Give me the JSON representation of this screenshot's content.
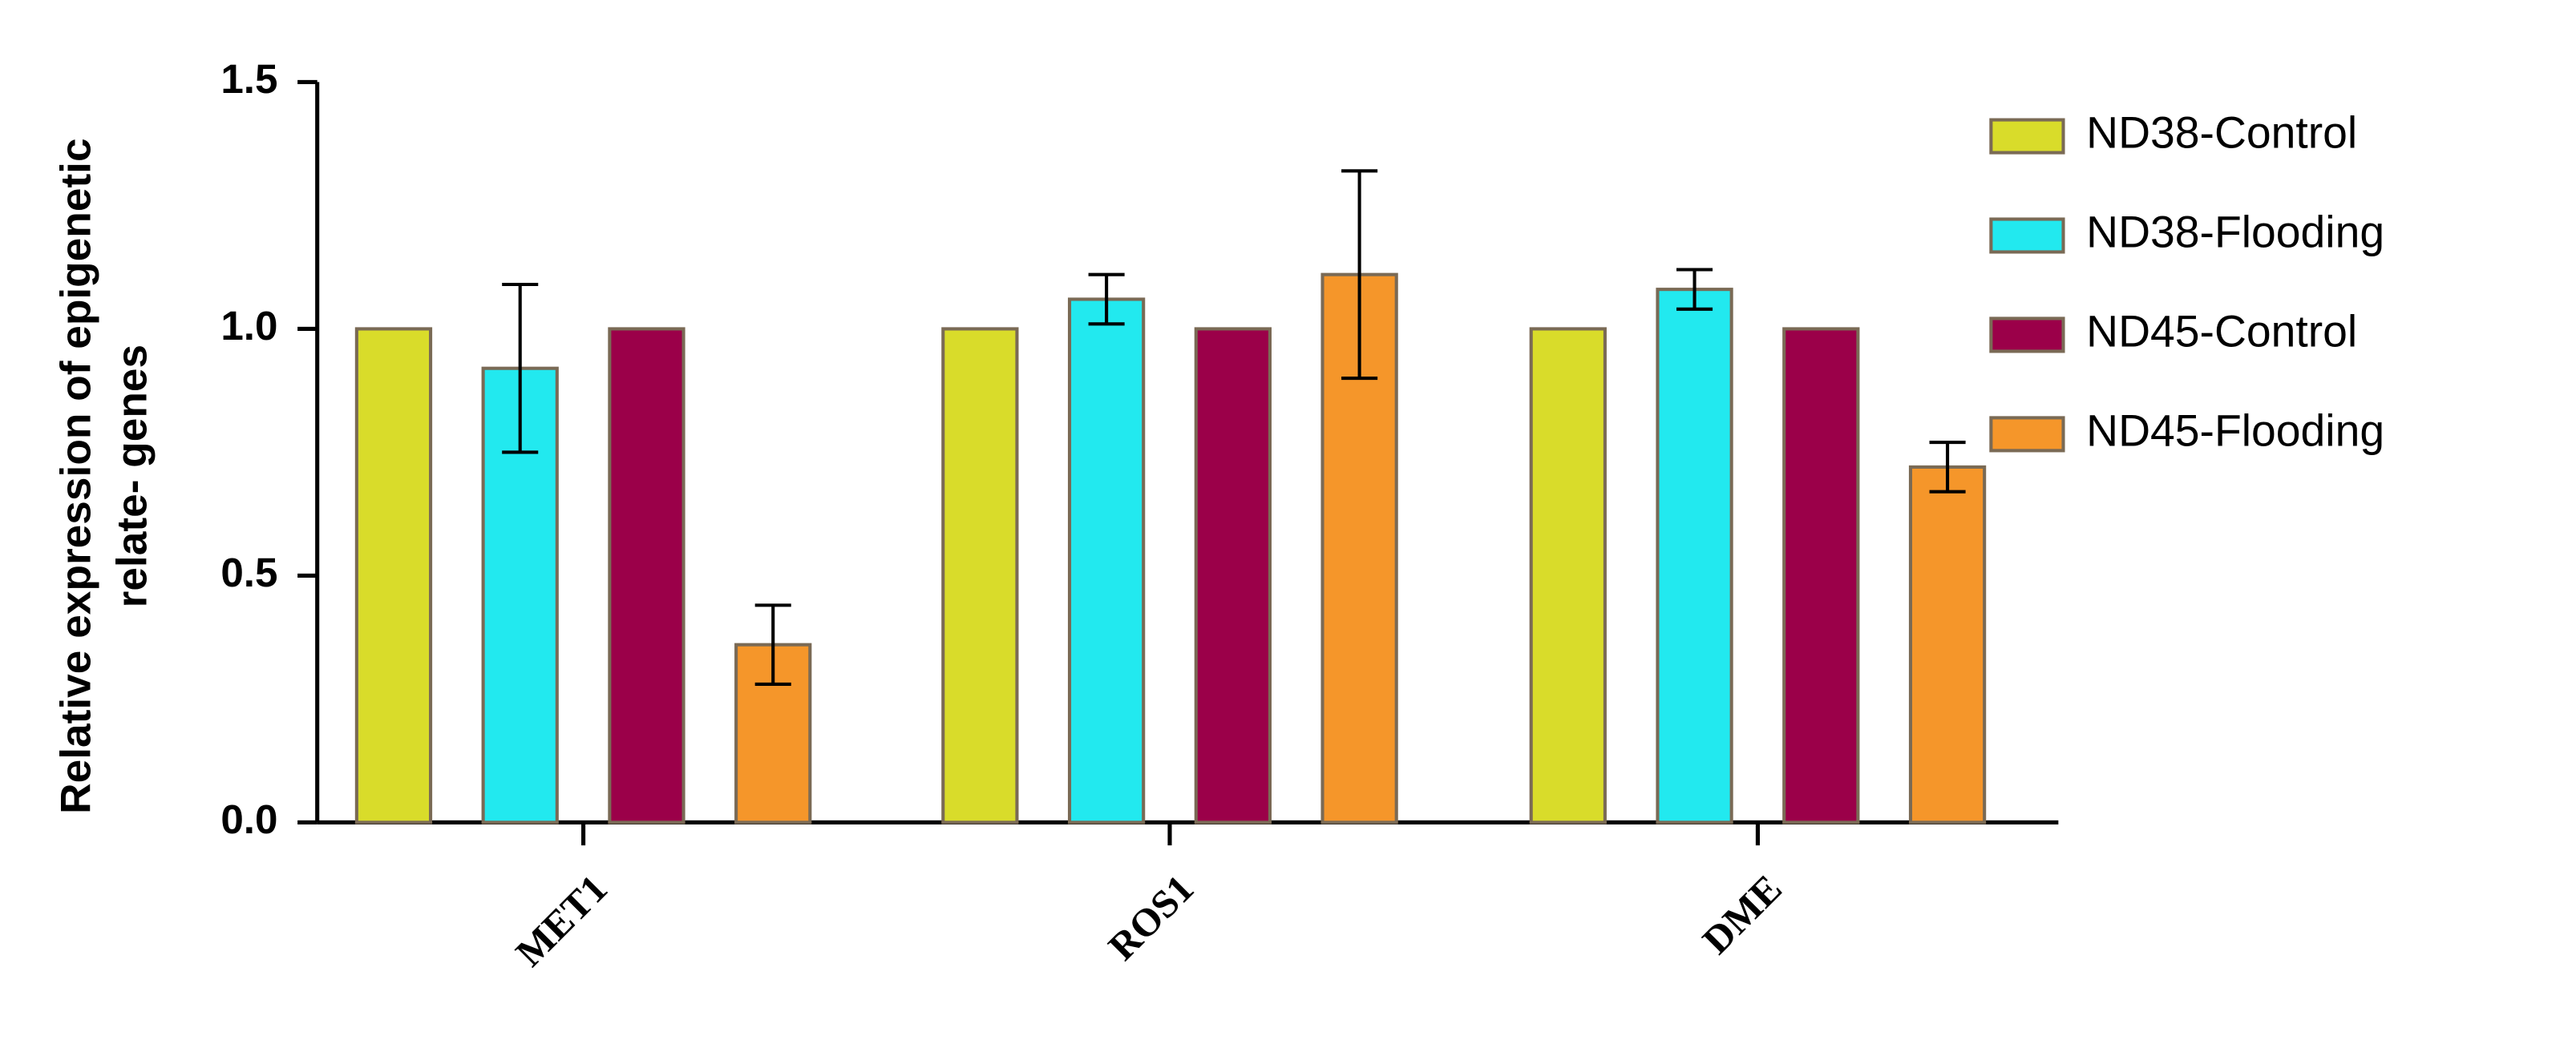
{
  "chart_data": {
    "type": "bar",
    "y_label": [
      "Relative expression of epigenetic",
      "relate- genes"
    ],
    "categories": [
      "MET1",
      "ROS1",
      "DME"
    ],
    "series": [
      {
        "name": "ND38-Control",
        "color": "#d9dc2a",
        "values": [
          1.0,
          1.0,
          1.0
        ]
      },
      {
        "name": "ND38-Flooding",
        "color": "#22e9ef",
        "values": [
          0.92,
          1.06,
          1.08
        ],
        "errors": [
          0.17,
          0.05,
          0.04
        ]
      },
      {
        "name": "ND45-Control",
        "color": "#9b0049",
        "values": [
          1.0,
          1.0,
          1.0
        ]
      },
      {
        "name": "ND45-Flooding",
        "color": "#f5962a",
        "values": [
          0.36,
          1.11,
          0.72
        ],
        "errors": [
          0.08,
          0.21,
          0.05
        ]
      }
    ],
    "ylim": [
      0,
      1.5
    ],
    "yticks": [
      {
        "value": 0,
        "label": "0.0"
      },
      {
        "value": 0.5,
        "label": "0.5"
      },
      {
        "value": 1.0,
        "label": "1.0"
      },
      {
        "value": 1.5,
        "label": "1.5"
      }
    ],
    "legend": "right"
  }
}
